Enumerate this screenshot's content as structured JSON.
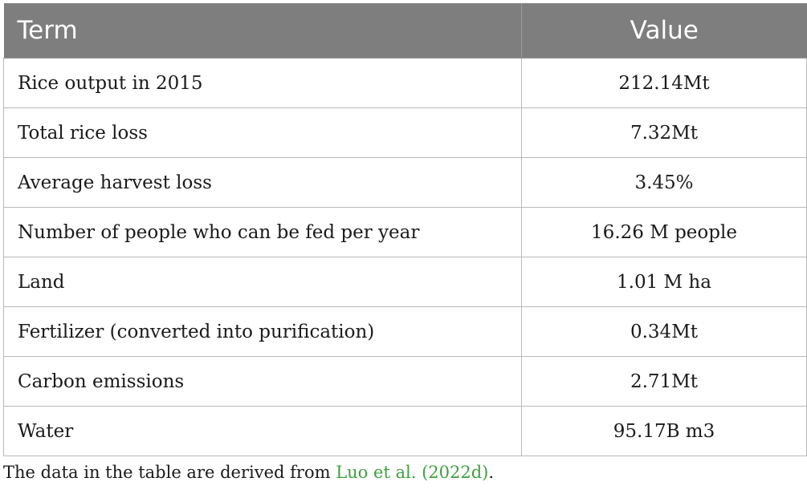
{
  "table": {
    "header": {
      "term": "Term",
      "value": "Value"
    },
    "rows": [
      {
        "term": "Rice output in 2015",
        "value": "212.14Mt"
      },
      {
        "term": "Total rice loss",
        "value": "7.32Mt"
      },
      {
        "term": "Average harvest loss",
        "value": "3.45%"
      },
      {
        "term": "Number of people who can be fed per year",
        "value": "16.26 M people"
      },
      {
        "term": "Land",
        "value": "1.01 M ha"
      },
      {
        "term": "Fertilizer (converted into purification)",
        "value": "0.34Mt"
      },
      {
        "term": "Carbon emissions",
        "value": "2.71Mt"
      },
      {
        "term": "Water",
        "value": "95.17B m3"
      }
    ]
  },
  "footnote": {
    "prefix": "The data in the table are derived from ",
    "citation": "Luo et al. (2022d)",
    "suffix": "."
  },
  "colors": {
    "header_background": "#7e7e7e",
    "header_text": "#ffffff",
    "citation_link": "#3ea03e"
  }
}
